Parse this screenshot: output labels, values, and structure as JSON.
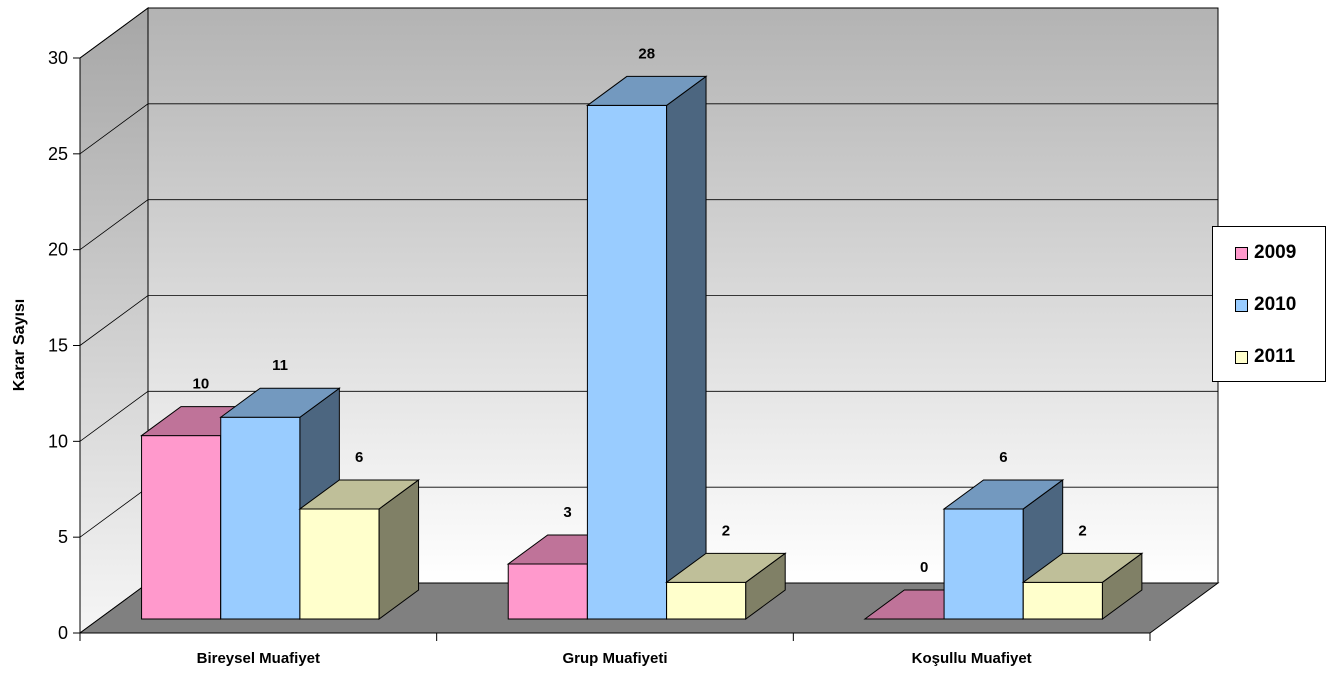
{
  "chart_data": {
    "type": "bar",
    "categories": [
      "Bireysel Muafiyet",
      "Grup Muafiyeti",
      "Koşullu Muafiyet"
    ],
    "series": [
      {
        "name": "2009",
        "values": [
          10,
          3,
          0
        ],
        "color": "#FF99CC",
        "top_color": "#BF7399"
      },
      {
        "name": "2010",
        "values": [
          11,
          28,
          6
        ],
        "color": "#99CCFF",
        "top_color": "#7399BF",
        "side_color": "#4C6680"
      },
      {
        "name": "2011",
        "values": [
          6,
          2,
          2
        ],
        "color": "#FFFFCC",
        "top_color": "#BFBF99",
        "side_color": "#808066"
      }
    ],
    "ylabel": "Karar Sayısı",
    "xlabel": "",
    "title": "",
    "ylim": [
      0,
      30
    ],
    "yticks": [
      0,
      5,
      10,
      15,
      20,
      25,
      30
    ],
    "data_labels": [
      [
        "10",
        "3",
        "0"
      ],
      [
        "11",
        "28",
        "6"
      ],
      [
        "6",
        "2",
        "2"
      ]
    ],
    "grid": true,
    "legend_position": "right",
    "style": "3d"
  }
}
